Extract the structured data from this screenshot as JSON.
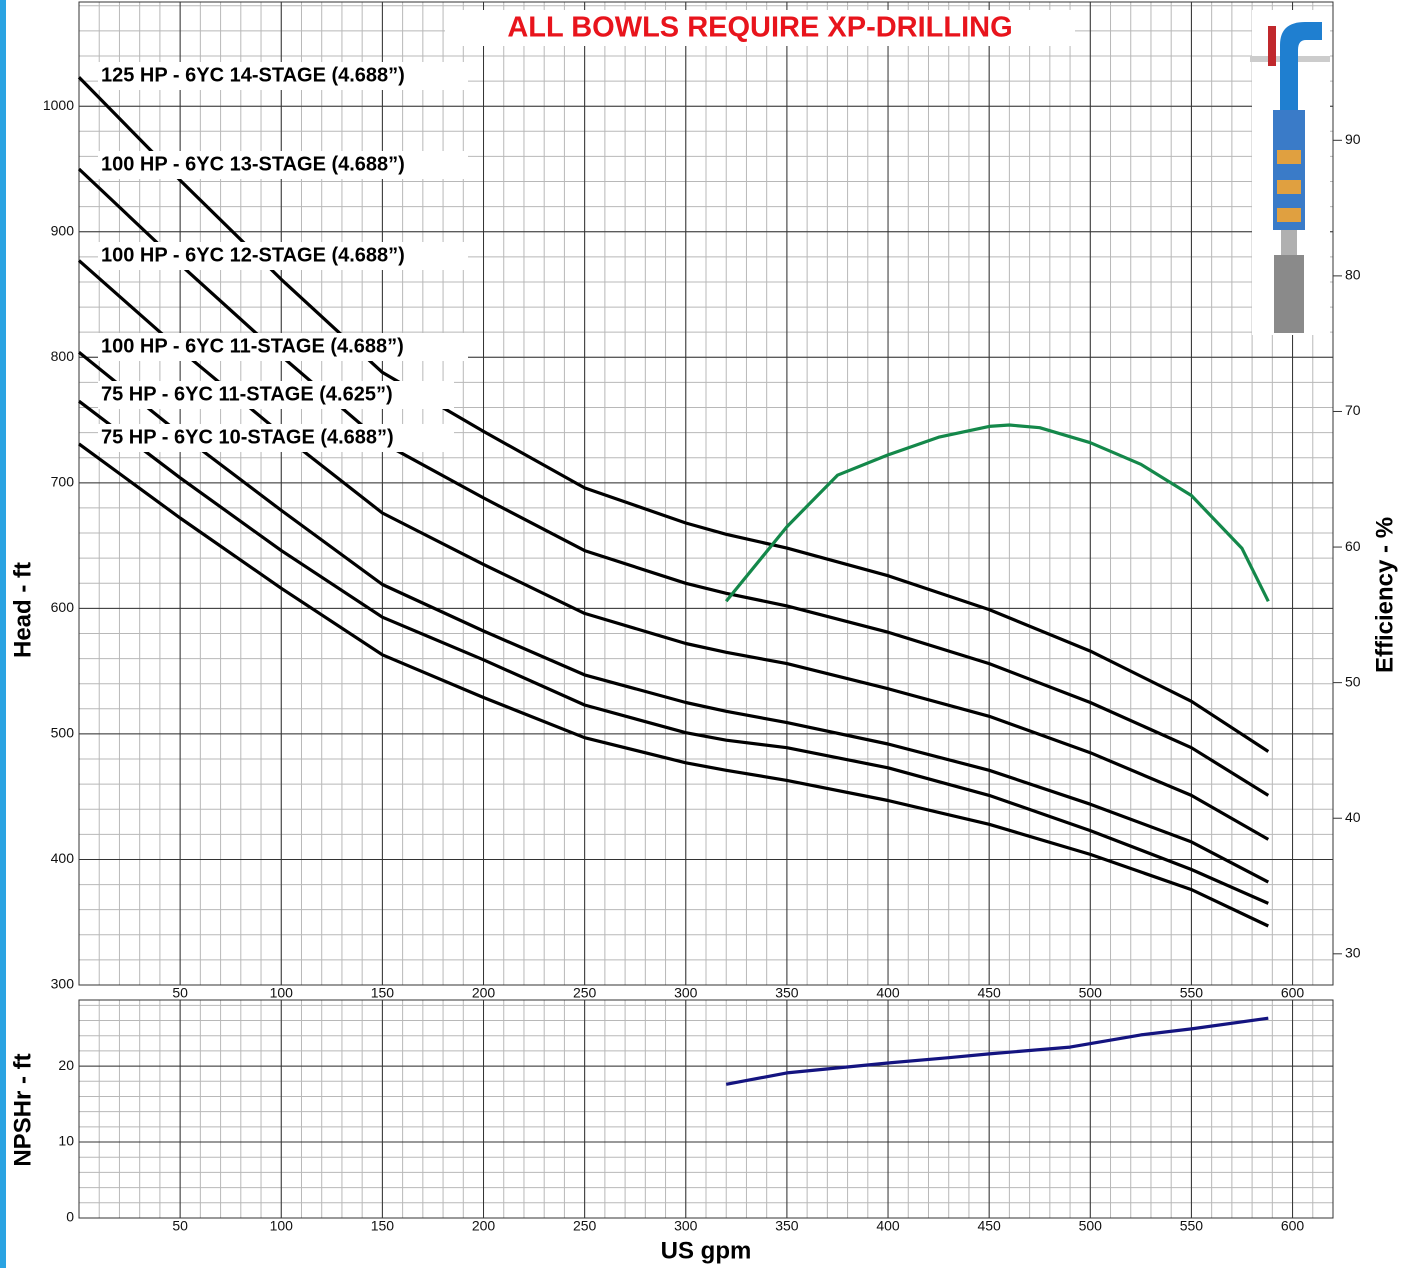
{
  "chart_data": [
    {
      "type": "line",
      "title": "ALL BOWLS REQUIRE XP-DRILLING",
      "y_label": "Head - ft",
      "y2_label": "Efficiency - %",
      "xlim": [
        0,
        620
      ],
      "xticks": [
        50,
        100,
        150,
        200,
        250,
        300,
        350,
        400,
        450,
        500,
        550,
        600
      ],
      "ylim": [
        300,
        1083
      ],
      "yticks": [
        300,
        400,
        500,
        600,
        700,
        800,
        900,
        1000
      ],
      "y2lim": [
        27.7,
        100.2
      ],
      "y2ticks": [
        30,
        40,
        50,
        60,
        70,
        80,
        90
      ],
      "grid": true,
      "x_minor_step": 10,
      "y_minor_step": 20,
      "series": [
        {
          "name": "125 HP - 6YC 14-STAGE (4.688”)",
          "color": "#000000",
          "x": [
            0,
            50,
            100,
            150,
            200,
            250,
            300,
            320,
            350,
            400,
            450,
            500,
            550,
            588
          ],
          "values": [
            1023,
            941,
            862,
            788,
            741,
            696,
            668,
            659,
            648,
            626,
            599,
            566,
            526,
            486
          ]
        },
        {
          "name": "100 HP - 6YC 13-STAGE (4.688”)",
          "color": "#000000",
          "x": [
            0,
            50,
            100,
            150,
            200,
            250,
            300,
            320,
            350,
            400,
            450,
            500,
            550,
            588
          ],
          "values": [
            950,
            874,
            801,
            732,
            688,
            646,
            620,
            612,
            602,
            581,
            556,
            525,
            489,
            451
          ]
        },
        {
          "name": "100 HP - 6YC 12-STAGE (4.688”)",
          "color": "#000000",
          "x": [
            0,
            50,
            100,
            150,
            200,
            250,
            300,
            320,
            350,
            400,
            450,
            500,
            550,
            588
          ],
          "values": [
            877,
            806,
            739,
            676,
            635,
            596,
            572,
            565,
            556,
            536,
            514,
            485,
            451,
            416
          ]
        },
        {
          "name": "100 HP - 6YC 11-STAGE (4.688”)",
          "color": "#000000",
          "x": [
            0,
            50,
            100,
            150,
            200,
            250,
            300,
            320,
            350,
            400,
            450,
            500,
            550,
            588
          ],
          "values": [
            804,
            739,
            678,
            619,
            582,
            547,
            525,
            518,
            509,
            492,
            471,
            444,
            414,
            382
          ]
        },
        {
          "name": "75 HP - 6YC 11-STAGE (4.625”)",
          "color": "#000000",
          "x": [
            0,
            50,
            100,
            150,
            200,
            250,
            300,
            320,
            350,
            400,
            450,
            500,
            550,
            588
          ],
          "values": [
            765,
            704,
            646,
            593,
            559,
            523,
            501,
            495,
            489,
            473,
            451,
            423,
            392,
            365
          ]
        },
        {
          "name": "75 HP - 6YC 10-STAGE (4.688”)",
          "color": "#000000",
          "x": [
            0,
            50,
            100,
            150,
            200,
            250,
            300,
            320,
            350,
            400,
            450,
            500,
            550,
            588
          ],
          "values": [
            731,
            672,
            616,
            563,
            529,
            497,
            477,
            471,
            463,
            447,
            428,
            404,
            376,
            347
          ]
        },
        {
          "name": "Efficiency",
          "color": "#14884a",
          "axis": "y2",
          "x": [
            320,
            350,
            375,
            400,
            425,
            450,
            460,
            475,
            500,
            525,
            550,
            575,
            588
          ],
          "values": [
            56.0,
            61.5,
            65.3,
            66.8,
            68.1,
            68.9,
            69.0,
            68.8,
            67.7,
            66.1,
            63.8,
            59.9,
            56.0
          ]
        }
      ]
    },
    {
      "type": "line",
      "y_label": "NPSHr - ft",
      "x_label": "US gpm",
      "xlim": [
        0,
        620
      ],
      "xticks": [
        50,
        100,
        150,
        200,
        250,
        300,
        350,
        400,
        450,
        500,
        550,
        600
      ],
      "ylim": [
        0,
        28.7
      ],
      "yticks": [
        0,
        10,
        20
      ],
      "grid": true,
      "x_minor_step": 10,
      "y_minor_step": 2,
      "series": [
        {
          "name": "NPSHr",
          "color": "#141480",
          "x": [
            320,
            350,
            400,
            430,
            450,
            490,
            525,
            550,
            588
          ],
          "values": [
            17.6,
            19.1,
            20.4,
            21.1,
            21.6,
            22.5,
            24.1,
            24.9,
            26.3
          ]
        }
      ]
    }
  ]
}
